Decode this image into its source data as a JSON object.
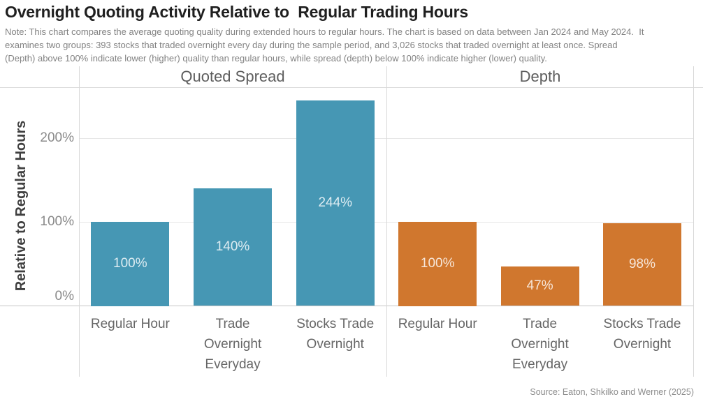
{
  "title": "Overnight Quoting Activity Relative to  Regular Trading Hours",
  "note_lines": [
    "Note: This chart compares the average quoting quality during extended hours to regular hours. The chart is based on data between Jan 2024 and May 2024.  It",
    "examines two groups: 393 stocks that traded overnight every day during the sample period, and 3,026 stocks that traded overnight at least once. Spread",
    "(Depth) above 100% indicate lower (higher) quality than regular hours, while spread (depth) below 100% indicate higher (lower) quality."
  ],
  "source": "Source: Eaton, Shkilko and Werner (2025)",
  "chart_data": {
    "type": "bar",
    "layout": "two side-by-side panels sharing one y-axis, no legend, light horizontal gridlines",
    "ylabel": "Relative to Regular Hours",
    "ylim": [
      0,
      260
    ],
    "yticks": [
      "0%",
      "100%",
      "200%"
    ],
    "grid": true,
    "value_unit": "%",
    "categories": [
      "Regular Hour",
      "Trade Overnight Everyday",
      "Stocks Trade Overnight"
    ],
    "categories_lines": [
      [
        "Regular Hour"
      ],
      [
        "Trade",
        "Overnight",
        "Everyday"
      ],
      [
        "Stocks Trade",
        "Overnight"
      ]
    ],
    "series": [
      {
        "name": "Quoted Spread",
        "color": "#4697b4",
        "values": [
          100,
          140,
          244
        ],
        "labels": [
          "100%",
          "140%",
          "244%"
        ]
      },
      {
        "name": "Depth",
        "color": "#d0772e",
        "values": [
          100,
          47,
          98
        ],
        "labels": [
          "100%",
          "47%",
          "98%"
        ]
      }
    ]
  }
}
